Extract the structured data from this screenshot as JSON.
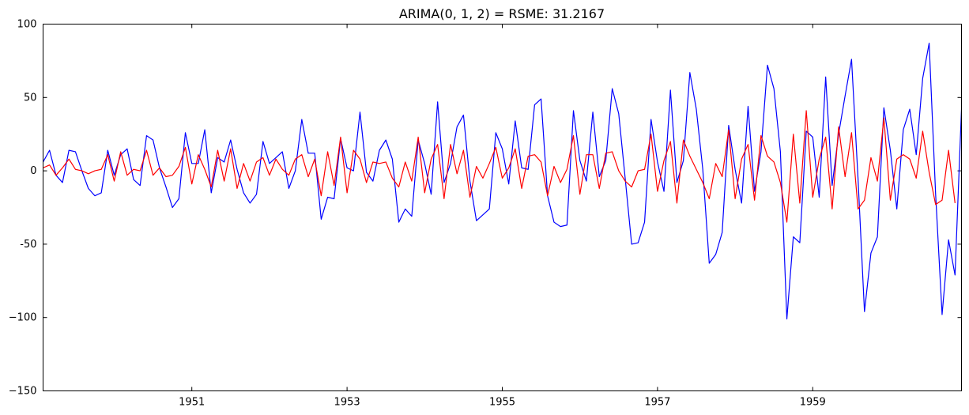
{
  "chart_data": {
    "type": "line",
    "title": "ARIMA(0, 1, 2) = RSME: 31.2167",
    "xlabel": "",
    "ylabel": "",
    "x_start": "1949-02",
    "x_frequency": "monthly",
    "xlim": [
      "1949-02",
      "1960-12"
    ],
    "ylim": [
      -150,
      100
    ],
    "x_ticks": [
      {
        "date": "1951-01",
        "label": "1951"
      },
      {
        "date": "1953-01",
        "label": "1953"
      },
      {
        "date": "1955-01",
        "label": "1955"
      },
      {
        "date": "1957-01",
        "label": "1957"
      },
      {
        "date": "1959-01",
        "label": "1959"
      }
    ],
    "y_ticks": [
      {
        "value": 100,
        "label": "100"
      },
      {
        "value": 50,
        "label": "50"
      },
      {
        "value": 0,
        "label": "0"
      },
      {
        "value": -50,
        "label": "-50"
      },
      {
        "value": -100,
        "label": "−100"
      },
      {
        "value": -150,
        "label": "−150"
      }
    ],
    "grid": false,
    "legend": "none",
    "series": [
      {
        "color": "#0000ff",
        "values": [
          6,
          14,
          -3,
          -8,
          14,
          13,
          0,
          -12,
          -17,
          -15,
          14,
          -3,
          11,
          15,
          -6,
          -10,
          24,
          21,
          2,
          -11,
          -25,
          -19,
          26,
          5,
          5,
          28,
          -15,
          9,
          6,
          21,
          1,
          -15,
          -22,
          -16,
          20,
          5,
          9,
          13,
          -12,
          0,
          35,
          12,
          12,
          -33,
          -18,
          -19,
          22,
          2,
          0,
          40,
          -1,
          -7,
          14,
          21,
          8,
          -35,
          -26,
          -31,
          21,
          5,
          -16,
          47,
          -8,
          5,
          30,
          38,
          -7,
          -34,
          -30,
          -26,
          26,
          15,
          -9,
          34,
          2,
          1,
          45,
          49,
          -17,
          -35,
          -38,
          -37,
          41,
          7,
          -7,
          40,
          -4,
          7,
          56,
          39,
          -5,
          -50,
          -49,
          -35,
          35,
          6,
          -14,
          55,
          -8,
          7,
          67,
          42,
          1,
          -63,
          -57,
          -42,
          31,
          1,
          -22,
          44,
          -14,
          13,
          72,
          56,
          13,
          -101,
          -45,
          -49,
          27,
          23,
          -18,
          64,
          -10,
          25,
          51,
          76,
          -5,
          -96,
          -56,
          -45,
          43,
          14,
          -26,
          28,
          42,
          11,
          63,
          87,
          -16,
          -98,
          -47,
          -71,
          42
        ]
      },
      {
        "color": "#ff0000",
        "values": [
          2,
          4,
          -3,
          2,
          8,
          1,
          0,
          -2,
          0,
          1,
          11,
          -7,
          13,
          -3,
          1,
          0,
          14,
          -3,
          2,
          -4,
          -3,
          3,
          16,
          -9,
          11,
          1,
          -11,
          14,
          -7,
          15,
          -12,
          5,
          -7,
          6,
          9,
          -3,
          8,
          1,
          -3,
          8,
          11,
          -4,
          8,
          -17,
          13,
          -10,
          23,
          -15,
          14,
          8,
          -8,
          6,
          5,
          6,
          -5,
          -11,
          6,
          -7,
          23,
          -15,
          8,
          18,
          -19,
          18,
          -2,
          14,
          -18,
          3,
          -5,
          5,
          16,
          -5,
          2,
          15,
          -12,
          10,
          11,
          6,
          -17,
          3,
          -8,
          1,
          24,
          -16,
          11,
          11,
          -12,
          12,
          13,
          0,
          -7,
          -11,
          0,
          1,
          25,
          -14,
          7,
          20,
          -22,
          21,
          10,
          1,
          -8,
          -19,
          5,
          -4,
          28,
          -19,
          8,
          18,
          -20,
          24,
          10,
          6,
          -8,
          -35,
          25,
          -22,
          41,
          -18,
          8,
          23,
          -26,
          30,
          -4,
          26,
          -26,
          -20,
          9,
          -7,
          36,
          -20,
          8,
          11,
          8,
          -5,
          27,
          -1,
          -23,
          -20,
          14,
          -22
        ]
      }
    ]
  }
}
